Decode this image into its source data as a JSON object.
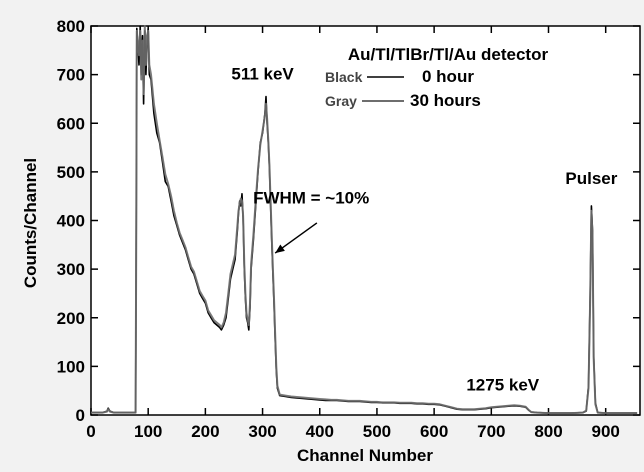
{
  "chart_data": {
    "type": "line",
    "title": "Au/Tl/TlBr/Tl/Au detector",
    "xlabel": "Channel Number",
    "ylabel": "Counts/Channel",
    "xlim": [
      0,
      960
    ],
    "ylim": [
      0,
      800
    ],
    "x_ticks": [
      0,
      100,
      200,
      300,
      400,
      500,
      600,
      700,
      800,
      900
    ],
    "y_ticks": [
      0,
      100,
      200,
      300,
      400,
      500,
      600,
      700,
      800
    ],
    "legend": {
      "placement": "top-right",
      "entries": [
        {
          "key": "Black",
          "label": "0 hour",
          "color": "#000000"
        },
        {
          "key": "Gray",
          "label": "30 hours",
          "color": "#6e6e6e"
        }
      ]
    },
    "annotations": [
      {
        "text": "511 keV",
        "x": 300,
        "y": 690
      },
      {
        "text": "FWHM = ~10%",
        "x": 385,
        "y": 435
      },
      {
        "text": "1275 keV",
        "x": 720,
        "y": 50
      },
      {
        "text": "Pulser",
        "x": 875,
        "y": 475
      }
    ],
    "arrow": {
      "from": [
        395,
        395
      ],
      "to": [
        322,
        333
      ]
    },
    "series": [
      {
        "name": "0 hour",
        "color": "#000000",
        "points": [
          [
            0,
            5
          ],
          [
            20,
            5
          ],
          [
            28,
            8
          ],
          [
            30,
            14
          ],
          [
            33,
            8
          ],
          [
            40,
            5
          ],
          [
            78,
            5
          ],
          [
            79,
            360
          ],
          [
            80,
            795
          ],
          [
            84,
            720
          ],
          [
            86,
            800
          ],
          [
            88,
            700
          ],
          [
            90,
            780
          ],
          [
            92,
            640
          ],
          [
            94,
            790
          ],
          [
            96,
            700
          ],
          [
            98,
            760
          ],
          [
            100,
            795
          ],
          [
            102,
            700
          ],
          [
            105,
            690
          ],
          [
            110,
            620
          ],
          [
            115,
            580
          ],
          [
            120,
            560
          ],
          [
            125,
            520
          ],
          [
            130,
            480
          ],
          [
            135,
            470
          ],
          [
            140,
            440
          ],
          [
            145,
            410
          ],
          [
            150,
            390
          ],
          [
            155,
            370
          ],
          [
            160,
            355
          ],
          [
            165,
            340
          ],
          [
            170,
            320
          ],
          [
            175,
            300
          ],
          [
            180,
            290
          ],
          [
            185,
            270
          ],
          [
            190,
            250
          ],
          [
            195,
            240
          ],
          [
            200,
            230
          ],
          [
            205,
            210
          ],
          [
            210,
            200
          ],
          [
            215,
            190
          ],
          [
            220,
            185
          ],
          [
            225,
            180
          ],
          [
            228,
            175
          ],
          [
            232,
            185
          ],
          [
            236,
            200
          ],
          [
            240,
            240
          ],
          [
            244,
            280
          ],
          [
            248,
            300
          ],
          [
            252,
            320
          ],
          [
            256,
            380
          ],
          [
            258,
            415
          ],
          [
            260,
            440
          ],
          [
            262,
            430
          ],
          [
            264,
            455
          ],
          [
            266,
            405
          ],
          [
            268,
            300
          ],
          [
            270,
            240
          ],
          [
            272,
            200
          ],
          [
            274,
            190
          ],
          [
            276,
            175
          ],
          [
            278,
            220
          ],
          [
            280,
            300
          ],
          [
            284,
            360
          ],
          [
            288,
            430
          ],
          [
            292,
            500
          ],
          [
            296,
            560
          ],
          [
            300,
            580
          ],
          [
            304,
            620
          ],
          [
            306,
            655
          ],
          [
            308,
            600
          ],
          [
            310,
            560
          ],
          [
            312,
            510
          ],
          [
            314,
            430
          ],
          [
            316,
            360
          ],
          [
            318,
            290
          ],
          [
            320,
            230
          ],
          [
            322,
            160
          ],
          [
            324,
            90
          ],
          [
            326,
            55
          ],
          [
            330,
            40
          ],
          [
            340,
            38
          ],
          [
            350,
            36
          ],
          [
            360,
            35
          ],
          [
            370,
            34
          ],
          [
            380,
            33
          ],
          [
            390,
            32
          ],
          [
            400,
            31
          ],
          [
            410,
            30
          ],
          [
            420,
            30
          ],
          [
            430,
            30
          ],
          [
            440,
            29
          ],
          [
            450,
            28
          ],
          [
            460,
            28
          ],
          [
            470,
            28
          ],
          [
            480,
            27
          ],
          [
            490,
            26
          ],
          [
            500,
            26
          ],
          [
            510,
            25
          ],
          [
            520,
            25
          ],
          [
            530,
            25
          ],
          [
            540,
            24
          ],
          [
            550,
            24
          ],
          [
            560,
            24
          ],
          [
            570,
            23
          ],
          [
            580,
            23
          ],
          [
            590,
            22
          ],
          [
            600,
            22
          ],
          [
            610,
            21
          ],
          [
            620,
            18
          ],
          [
            630,
            15
          ],
          [
            640,
            12
          ],
          [
            650,
            11
          ],
          [
            660,
            11
          ],
          [
            670,
            11
          ],
          [
            680,
            12
          ],
          [
            690,
            13
          ],
          [
            700,
            15
          ],
          [
            710,
            16
          ],
          [
            720,
            17
          ],
          [
            730,
            18
          ],
          [
            740,
            19
          ],
          [
            750,
            18
          ],
          [
            760,
            16
          ],
          [
            765,
            10
          ],
          [
            770,
            6
          ],
          [
            780,
            5
          ],
          [
            800,
            4
          ],
          [
            820,
            4
          ],
          [
            840,
            4
          ],
          [
            860,
            5
          ],
          [
            866,
            8
          ],
          [
            870,
            60
          ],
          [
            873,
            250
          ],
          [
            875,
            430
          ],
          [
            877,
            380
          ],
          [
            879,
            120
          ],
          [
            882,
            25
          ],
          [
            886,
            5
          ],
          [
            900,
            4
          ],
          [
            920,
            4
          ],
          [
            940,
            4
          ],
          [
            955,
            4
          ]
        ]
      },
      {
        "name": "30 hours",
        "color": "#6e6e6e",
        "points": [
          [
            0,
            5
          ],
          [
            20,
            5
          ],
          [
            28,
            7
          ],
          [
            30,
            12
          ],
          [
            33,
            7
          ],
          [
            40,
            5
          ],
          [
            78,
            5
          ],
          [
            79,
            340
          ],
          [
            80,
            790
          ],
          [
            84,
            740
          ],
          [
            86,
            790
          ],
          [
            88,
            690
          ],
          [
            90,
            770
          ],
          [
            92,
            660
          ],
          [
            94,
            800
          ],
          [
            96,
            720
          ],
          [
            98,
            780
          ],
          [
            100,
            790
          ],
          [
            102,
            720
          ],
          [
            105,
            700
          ],
          [
            110,
            640
          ],
          [
            115,
            600
          ],
          [
            120,
            565
          ],
          [
            125,
            530
          ],
          [
            130,
            495
          ],
          [
            135,
            475
          ],
          [
            140,
            450
          ],
          [
            145,
            420
          ],
          [
            150,
            395
          ],
          [
            155,
            375
          ],
          [
            160,
            360
          ],
          [
            165,
            345
          ],
          [
            170,
            325
          ],
          [
            175,
            305
          ],
          [
            180,
            295
          ],
          [
            185,
            275
          ],
          [
            190,
            255
          ],
          [
            195,
            245
          ],
          [
            200,
            235
          ],
          [
            205,
            215
          ],
          [
            210,
            205
          ],
          [
            215,
            195
          ],
          [
            220,
            190
          ],
          [
            225,
            185
          ],
          [
            228,
            180
          ],
          [
            232,
            190
          ],
          [
            236,
            210
          ],
          [
            240,
            250
          ],
          [
            244,
            290
          ],
          [
            248,
            310
          ],
          [
            252,
            330
          ],
          [
            256,
            390
          ],
          [
            258,
            420
          ],
          [
            260,
            435
          ],
          [
            262,
            445
          ],
          [
            264,
            440
          ],
          [
            266,
            410
          ],
          [
            268,
            310
          ],
          [
            270,
            250
          ],
          [
            272,
            210
          ],
          [
            274,
            195
          ],
          [
            276,
            185
          ],
          [
            278,
            230
          ],
          [
            280,
            310
          ],
          [
            284,
            370
          ],
          [
            288,
            440
          ],
          [
            292,
            505
          ],
          [
            296,
            555
          ],
          [
            300,
            585
          ],
          [
            304,
            615
          ],
          [
            306,
            640
          ],
          [
            308,
            610
          ],
          [
            310,
            565
          ],
          [
            312,
            515
          ],
          [
            314,
            440
          ],
          [
            316,
            370
          ],
          [
            318,
            300
          ],
          [
            320,
            240
          ],
          [
            322,
            170
          ],
          [
            324,
            100
          ],
          [
            326,
            60
          ],
          [
            330,
            42
          ],
          [
            340,
            40
          ],
          [
            350,
            38
          ],
          [
            360,
            37
          ],
          [
            370,
            36
          ],
          [
            380,
            35
          ],
          [
            390,
            34
          ],
          [
            400,
            33
          ],
          [
            410,
            32
          ],
          [
            420,
            31
          ],
          [
            430,
            31
          ],
          [
            440,
            30
          ],
          [
            450,
            29
          ],
          [
            460,
            29
          ],
          [
            470,
            29
          ],
          [
            480,
            28
          ],
          [
            490,
            27
          ],
          [
            500,
            27
          ],
          [
            510,
            26
          ],
          [
            520,
            26
          ],
          [
            530,
            26
          ],
          [
            540,
            25
          ],
          [
            550,
            25
          ],
          [
            560,
            25
          ],
          [
            570,
            24
          ],
          [
            580,
            24
          ],
          [
            590,
            23
          ],
          [
            600,
            23
          ],
          [
            610,
            22
          ],
          [
            620,
            19
          ],
          [
            630,
            16
          ],
          [
            640,
            13
          ],
          [
            650,
            12
          ],
          [
            660,
            12
          ],
          [
            670,
            12
          ],
          [
            680,
            13
          ],
          [
            690,
            14
          ],
          [
            700,
            16
          ],
          [
            710,
            17
          ],
          [
            720,
            18
          ],
          [
            730,
            19
          ],
          [
            740,
            20
          ],
          [
            750,
            19
          ],
          [
            760,
            17
          ],
          [
            765,
            11
          ],
          [
            770,
            6
          ],
          [
            780,
            5
          ],
          [
            800,
            4
          ],
          [
            820,
            4
          ],
          [
            840,
            4
          ],
          [
            860,
            5
          ],
          [
            866,
            9
          ],
          [
            870,
            55
          ],
          [
            873,
            240
          ],
          [
            875,
            420
          ],
          [
            877,
            370
          ],
          [
            879,
            115
          ],
          [
            882,
            22
          ],
          [
            886,
            5
          ],
          [
            900,
            4
          ],
          [
            920,
            4
          ],
          [
            940,
            4
          ],
          [
            955,
            4
          ]
        ]
      }
    ]
  }
}
